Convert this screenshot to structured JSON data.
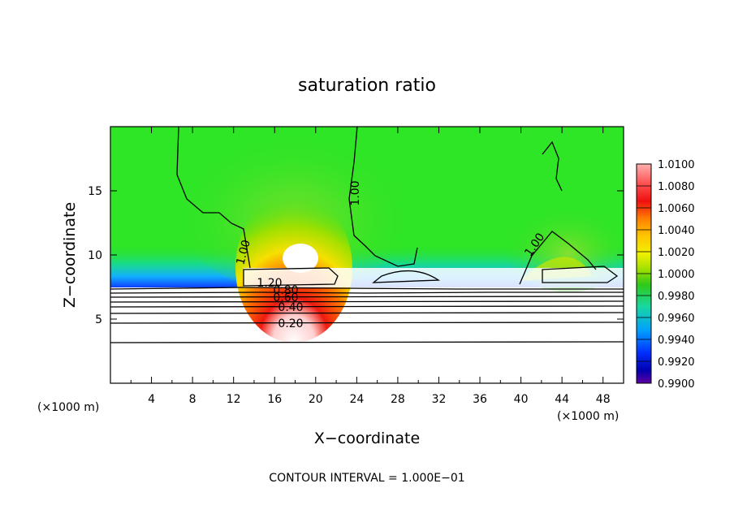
{
  "chart_data": {
    "type": "heatmap",
    "title": "saturation ratio",
    "xlabel": "X−coordinate",
    "ylabel": "Z−coordinate",
    "x_unit": "(×1000 m)",
    "x_unit_right": "(×1000 m)",
    "xlim": [
      0,
      50
    ],
    "ylim": [
      0,
      20
    ],
    "x_ticks": [
      4,
      8,
      12,
      16,
      20,
      24,
      28,
      32,
      36,
      40,
      44,
      48
    ],
    "y_ticks": [
      5,
      10,
      15
    ],
    "colorbar": {
      "levels": [
        "1.0100",
        "1.0080",
        "1.0060",
        "1.0040",
        "1.0020",
        "1.0000",
        "0.9980",
        "0.9960",
        "0.9940",
        "0.9920",
        "0.9900"
      ],
      "colors": [
        "#ffb0b0",
        "#ff5050",
        "#ee1010",
        "#ff8000",
        "#ffc800",
        "#f0f000",
        "#a0e000",
        "#30c818",
        "#18d8a0",
        "#00a0ff",
        "#0030ff",
        "#0000b0",
        "#6000a0"
      ]
    },
    "contour_labels": [
      "1.00",
      "1.00",
      "1.00",
      "1.20",
      "0.80",
      "0.60",
      "0.40",
      "0.20"
    ],
    "footer": "CONTOUR INTERVAL = 1.000E−01"
  },
  "colors": {
    "background": "#ffffff",
    "field_base": "#2ee626",
    "contour": "#000000"
  }
}
